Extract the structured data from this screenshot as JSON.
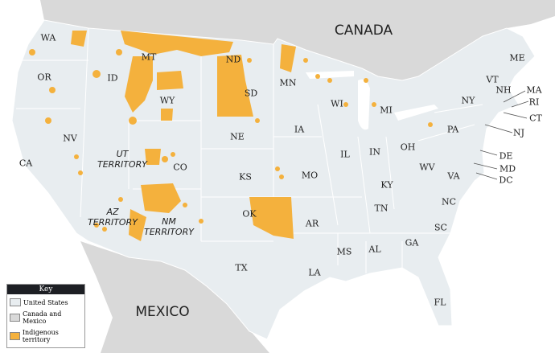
{
  "countries": {
    "canada": "CANADA",
    "mexico": "MEXICO"
  },
  "states": [
    "WA",
    "OR",
    "CA",
    "ID",
    "MT",
    "WY",
    "NV",
    "ND",
    "SD",
    "NE",
    "KS",
    "OK",
    "TX",
    "CO",
    "MN",
    "IA",
    "MO",
    "AR",
    "LA",
    "WI",
    "MI",
    "IL",
    "IN",
    "KY",
    "TN",
    "MS",
    "AL",
    "GA",
    "FL",
    "SC",
    "NC",
    "VA",
    "WV",
    "OH",
    "PA",
    "NY",
    "VT",
    "NH",
    "ME",
    "MA",
    "RI",
    "CT",
    "NJ",
    "DE",
    "MD",
    "DC"
  ],
  "territories": {
    "ut": "UT TERRITORY",
    "az": "AZ TERRITORY",
    "nm": "NM TERRITORY"
  },
  "key": {
    "title": "Key",
    "items": [
      {
        "label": "United States",
        "color": "#e8edf0"
      },
      {
        "label": "Canada and Mexico",
        "color": "#d9d9d9"
      },
      {
        "label": "Indigenous territory",
        "color": "#f4b13d"
      }
    ]
  },
  "colors": {
    "us": "#e8edf0",
    "foreign": "#d9d9d9",
    "indigenous": "#f4b13d"
  }
}
